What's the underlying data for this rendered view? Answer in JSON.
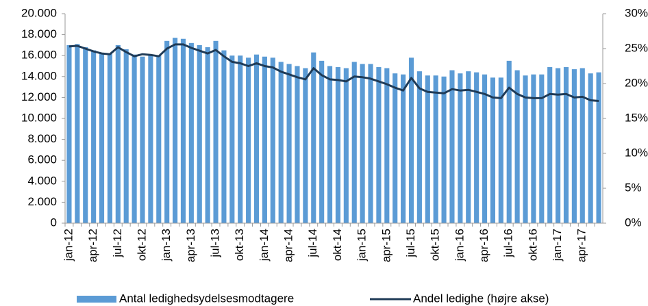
{
  "chart_data": {
    "type": "bar",
    "categories": [
      "jan-12",
      null,
      null,
      "apr-12",
      null,
      null,
      "jul-12",
      null,
      null,
      "okt-12",
      null,
      null,
      "jan-13",
      null,
      null,
      "apr-13",
      null,
      null,
      "jul-13",
      null,
      null,
      "okt-13",
      null,
      null,
      "jan-14",
      null,
      null,
      "apr-14",
      null,
      null,
      "jul-14",
      null,
      null,
      "okt-14",
      null,
      null,
      "jan-15",
      null,
      null,
      "apr-15",
      null,
      null,
      "jul-15",
      null,
      null,
      "okt-15",
      null,
      null,
      "jan-16",
      null,
      null,
      "apr-16",
      null,
      null,
      "jul-16",
      null,
      null,
      "okt-16",
      null,
      null,
      "jan-17",
      null,
      null,
      "apr-17",
      null,
      null
    ],
    "series": [
      {
        "name": "Antal ledighedsydelsesmodtagere",
        "color": "#5b9bd5",
        "type": "bar",
        "values": [
          17000,
          17100,
          16800,
          16500,
          16200,
          16200,
          17000,
          16600,
          16100,
          15900,
          16000,
          16000,
          17400,
          17700,
          17600,
          17200,
          17000,
          16800,
          17400,
          16500,
          16000,
          16000,
          15800,
          16100,
          15900,
          15800,
          15400,
          15200,
          15000,
          14800,
          16300,
          15500,
          15000,
          14900,
          14800,
          15400,
          15200,
          15200,
          14900,
          14800,
          14300,
          14200,
          15800,
          14500,
          14100,
          14100,
          14000,
          14600,
          14300,
          14500,
          14400,
          14200,
          13900,
          13900,
          15500,
          14600,
          14100,
          14200,
          14200,
          14900,
          14800,
          14900,
          14700,
          14800,
          14300,
          14400
        ]
      },
      {
        "name": "Andel ledighe (højre akse)",
        "color": "#1f3b57",
        "type": "line",
        "axis": "y2",
        "values": [
          25.3,
          25.4,
          25.0,
          24.6,
          24.3,
          24.2,
          25.2,
          24.5,
          23.9,
          24.2,
          24.1,
          23.9,
          25.0,
          25.6,
          25.6,
          25.1,
          24.7,
          24.3,
          24.8,
          23.9,
          23.1,
          22.9,
          22.5,
          22.9,
          22.5,
          22.3,
          21.7,
          21.3,
          20.9,
          20.6,
          22.2,
          21.2,
          20.6,
          20.5,
          20.3,
          21.0,
          20.9,
          20.7,
          20.3,
          19.9,
          19.4,
          19.0,
          20.8,
          19.3,
          18.8,
          18.7,
          18.6,
          19.2,
          19.0,
          19.1,
          18.8,
          18.5,
          18.0,
          17.9,
          19.4,
          18.5,
          18.0,
          17.9,
          17.9,
          18.5,
          18.4,
          18.5,
          18.0,
          18.1,
          17.6,
          17.5
        ]
      }
    ],
    "ylim": [
      0,
      20000
    ],
    "yticks": [
      0,
      {
        "value": 2000,
        "label": "2.000"
      },
      {
        "value": 4000,
        "label": "4.000"
      },
      {
        "value": 6000,
        "label": "6.000"
      },
      {
        "value": 8000,
        "label": "8.000"
      },
      {
        "value": 10000,
        "label": "10.000"
      },
      {
        "value": 12000,
        "label": "12.000"
      },
      {
        "value": 14000,
        "label": "14.000"
      },
      {
        "value": 16000,
        "label": "16.000"
      },
      {
        "value": 18000,
        "label": "18.000"
      },
      {
        "value": 20000,
        "label": "20.000"
      }
    ],
    "y2lim": [
      0,
      30
    ],
    "y2ticks": [
      {
        "value": 0,
        "label": "0%"
      },
      {
        "value": 5,
        "label": "5%"
      },
      {
        "value": 10,
        "label": "10%"
      },
      {
        "value": 15,
        "label": "15%"
      },
      {
        "value": 20,
        "label": "20%"
      },
      {
        "value": 25,
        "label": "25%"
      },
      {
        "value": 30,
        "label": "30%"
      }
    ],
    "grid": false,
    "legend": "bottom"
  }
}
